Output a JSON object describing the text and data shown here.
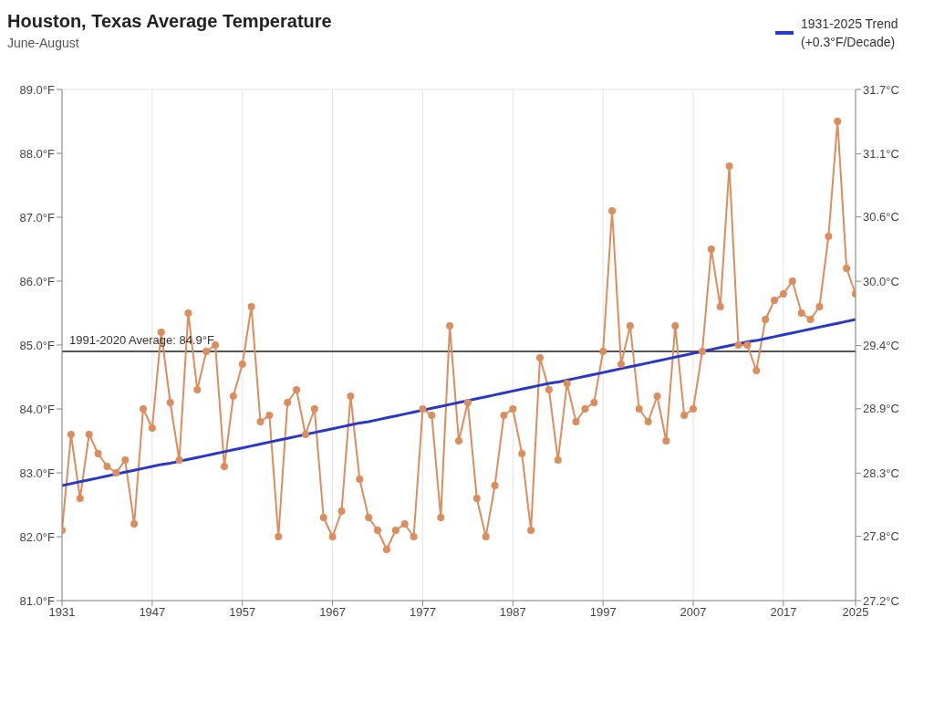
{
  "chart_data": {
    "type": "line",
    "title": "Houston, Texas Average Temperature",
    "subtitle": "June-August",
    "categories": [
      "1931",
      null,
      null,
      null,
      null,
      null,
      null,
      null,
      null,
      null,
      "1947",
      null,
      null,
      null,
      null,
      null,
      null,
      null,
      null,
      null,
      "1957",
      null,
      null,
      null,
      null,
      null,
      null,
      null,
      null,
      null,
      "1967",
      null,
      null,
      null,
      null,
      null,
      null,
      null,
      null,
      null,
      "1977",
      null,
      null,
      null,
      null,
      null,
      null,
      null,
      null,
      null,
      "1987",
      null,
      null,
      null,
      null,
      null,
      null,
      null,
      null,
      null,
      "1997",
      null,
      null,
      null,
      null,
      null,
      null,
      null,
      null,
      null,
      "2007",
      null,
      null,
      null,
      null,
      null,
      null,
      null,
      null,
      null,
      "2017",
      null,
      null,
      null,
      null,
      null,
      null,
      null,
      "2025"
    ],
    "series": [
      {
        "color": "#dd8c5c",
        "marker": "circle",
        "values": [
          82.1,
          83.6,
          82.6,
          83.6,
          83.3,
          83.1,
          83.0,
          83.2,
          82.2,
          84.0,
          83.7,
          85.2,
          84.1,
          83.2,
          85.5,
          84.3,
          84.9,
          85.0,
          83.1,
          84.2,
          84.7,
          85.6,
          83.8,
          83.9,
          82.0,
          84.1,
          84.3,
          83.6,
          84.0,
          82.3,
          82.0,
          82.4,
          84.2,
          82.9,
          82.3,
          82.1,
          81.8,
          82.1,
          82.2,
          82.0,
          84.0,
          83.9,
          82.3,
          85.3,
          83.5,
          84.1,
          82.6,
          82.0,
          82.8,
          83.9,
          84.0,
          83.3,
          82.1,
          84.8,
          84.3,
          83.2,
          84.4,
          83.8,
          84.0,
          84.1,
          84.9,
          87.1,
          84.7,
          85.3,
          84.0,
          83.8,
          84.2,
          83.5,
          85.3,
          83.9,
          84.0,
          84.9,
          86.5,
          85.6,
          87.8,
          85.0,
          85.0,
          84.6,
          85.4,
          85.7,
          85.8,
          86.0,
          85.5,
          85.4,
          85.6,
          86.7,
          88.5,
          86.2,
          85.8
        ]
      },
      {
        "name": "1931-2025 Trend (+0.3°F/Decade)",
        "color": "#2838c8",
        "marker": "none",
        "values": [
          82.8,
          82.83,
          82.86,
          82.89,
          82.92,
          82.95,
          82.98,
          83.01,
          83.04,
          83.07,
          83.1,
          83.13,
          83.15,
          83.18,
          83.21,
          83.24,
          83.27,
          83.3,
          83.33,
          83.36,
          83.39,
          83.42,
          83.45,
          83.48,
          83.51,
          83.54,
          83.57,
          83.6,
          83.63,
          83.66,
          83.69,
          83.72,
          83.75,
          83.78,
          83.8,
          83.83,
          83.86,
          83.89,
          83.92,
          83.95,
          83.98,
          84.01,
          84.04,
          84.07,
          84.1,
          84.13,
          84.16,
          84.19,
          84.22,
          84.25,
          84.28,
          84.31,
          84.34,
          84.37,
          84.4,
          84.42,
          84.45,
          84.48,
          84.51,
          84.54,
          84.57,
          84.6,
          84.63,
          84.66,
          84.69,
          84.72,
          84.75,
          84.78,
          84.81,
          84.84,
          84.87,
          84.9,
          84.93,
          84.96,
          84.99,
          85.02,
          85.05,
          85.07,
          85.1,
          85.13,
          85.16,
          85.19,
          85.22,
          85.25,
          85.28,
          85.31,
          85.34,
          85.37,
          85.4
        ]
      }
    ],
    "ylim": [
      81,
      89
    ],
    "yticks": [
      {
        "value": 81,
        "label": "81.0°F"
      },
      {
        "value": 82,
        "label": "82.0°F"
      },
      {
        "value": 83,
        "label": "83.0°F"
      },
      {
        "value": 84,
        "label": "84.0°F"
      },
      {
        "value": 85,
        "label": "85.0°F"
      },
      {
        "value": 86,
        "label": "86.0°F"
      },
      {
        "value": 87,
        "label": "87.0°F"
      },
      {
        "value": 88,
        "label": "88.0°F"
      },
      {
        "value": 89,
        "label": "89.0°F"
      }
    ],
    "y2lim": [
      27.22,
      31.67
    ],
    "y2ticks": [
      {
        "value": 27.22,
        "label": "27.2°C"
      },
      {
        "value": 27.78,
        "label": "27.8°C"
      },
      {
        "value": 28.33,
        "label": "28.3°C"
      },
      {
        "value": 28.89,
        "label": "28.9°C"
      },
      {
        "value": 29.44,
        "label": "29.4°C"
      },
      {
        "value": 30.0,
        "label": "30.0°C"
      },
      {
        "value": 30.56,
        "label": "30.6°C"
      },
      {
        "value": 31.11,
        "label": "31.1°C"
      },
      {
        "value": 31.67,
        "label": "31.7°C"
      }
    ],
    "ref_lines": [
      {
        "axis": "y",
        "value": 84.9,
        "label": "1991-2020 Average: 84.9°F",
        "color": "#555555"
      }
    ],
    "grid": true,
    "legend": "top right"
  }
}
